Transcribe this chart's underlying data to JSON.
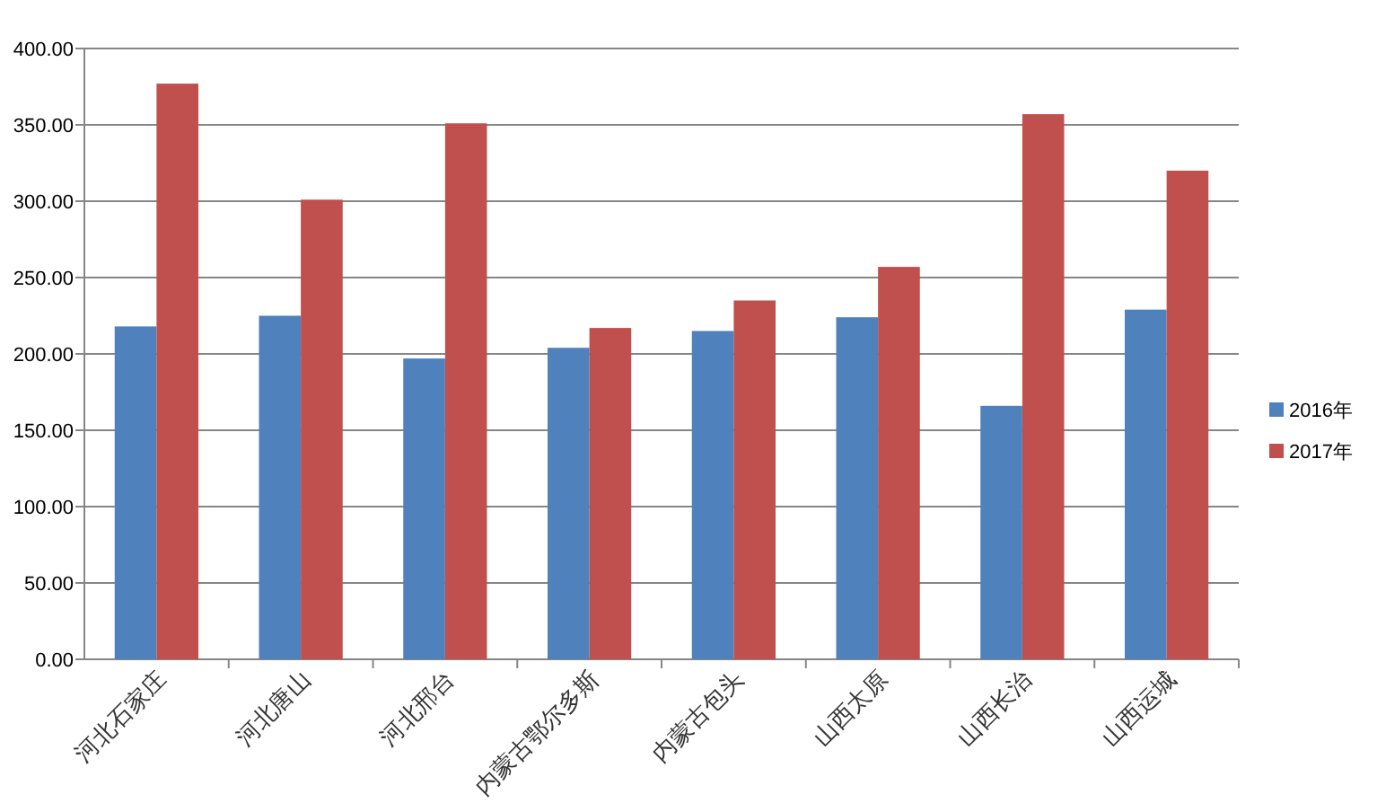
{
  "chart_data": {
    "type": "bar",
    "categories": [
      "河北石家庄",
      "河北唐山",
      "河北邢台",
      "内蒙古鄂尔多斯",
      "内蒙古包头",
      "山西太原",
      "山西长治",
      "山西运城"
    ],
    "series": [
      {
        "name": "2016年",
        "color": "#4f81bd",
        "values": [
          218,
          225,
          197,
          204,
          215,
          224,
          166,
          229
        ]
      },
      {
        "name": "2017年",
        "color": "#c0504d",
        "values": [
          377,
          301,
          351,
          217,
          235,
          257,
          357,
          320
        ]
      }
    ],
    "ylim": [
      0,
      400
    ],
    "yticks": [
      {
        "value": 0,
        "label": "0.00"
      },
      {
        "value": 50,
        "label": "50.00"
      },
      {
        "value": 100,
        "label": "100.00"
      },
      {
        "value": 150,
        "label": "150.00"
      },
      {
        "value": 200,
        "label": "200.00"
      },
      {
        "value": 250,
        "label": "250.00"
      },
      {
        "value": 300,
        "label": "300.00"
      },
      {
        "value": 350,
        "label": "350.00"
      },
      {
        "value": 400,
        "label": "400.00"
      }
    ],
    "grid": "y",
    "legend": "right"
  }
}
